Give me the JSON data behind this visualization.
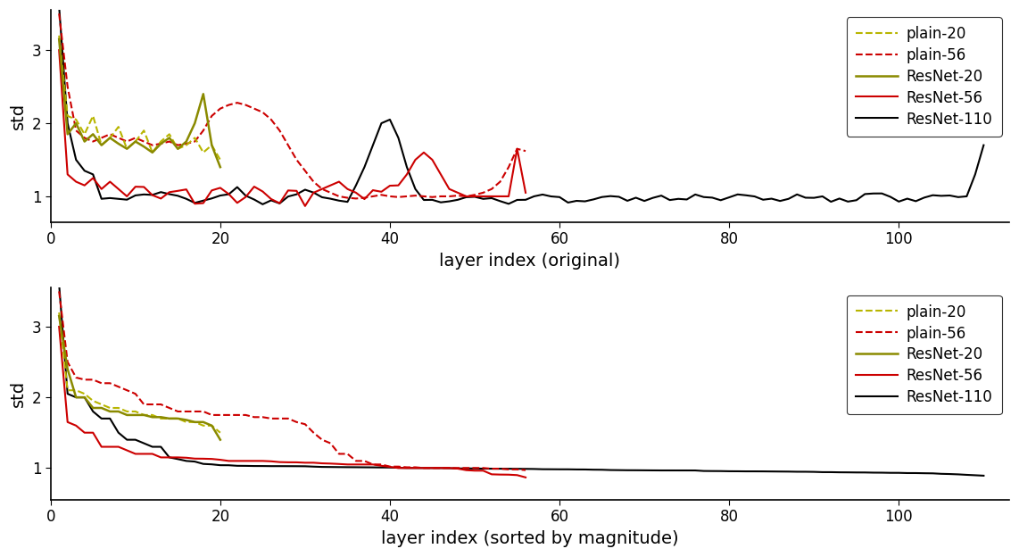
{
  "subplot1_xlabel": "layer index (original)",
  "subplot2_xlabel": "layer index (sorted by magnitude)",
  "ylabel": "std",
  "xlim": [
    0,
    113
  ],
  "ylim1": [
    0.65,
    3.55
  ],
  "ylim2": [
    0.55,
    3.55
  ],
  "yticks1": [
    1,
    2,
    3
  ],
  "yticks2": [
    1,
    2,
    3
  ],
  "xticks": [
    0,
    20,
    40,
    60,
    80,
    100
  ],
  "legend_labels": [
    "plain-20",
    "plain-56",
    "ResNet-20",
    "ResNet-56",
    "ResNet-110"
  ],
  "color_plain20": "#b8b500",
  "color_plain56": "#cc0000",
  "color_resnet20": "#8a8a00",
  "color_resnet56": "#cc0000",
  "color_resnet110": "#000000",
  "background_color": "#ffffff",
  "lw": 1.5
}
